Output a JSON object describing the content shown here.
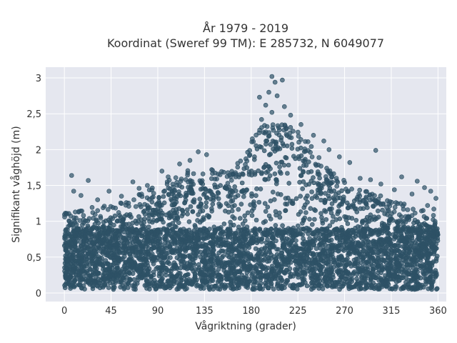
{
  "chart_data": {
    "type": "scatter",
    "title": "År 1979 - 2019",
    "subtitle": "Koordinat (Sweref 99 TM): E 285732, N 6049077",
    "xlabel": "Vågriktning (grader)",
    "ylabel": "Signifikant våghöjd (m)",
    "xlim": [
      -18,
      368
    ],
    "ylim": [
      -0.12,
      3.15
    ],
    "xticks": [
      0,
      45,
      90,
      135,
      180,
      225,
      270,
      315,
      360
    ],
    "xtick_labels": [
      "0",
      "45",
      "90",
      "135",
      "180",
      "225",
      "270",
      "315",
      "360"
    ],
    "yticks": [
      0,
      0.5,
      1,
      1.5,
      2,
      2.5,
      3
    ],
    "ytick_labels": [
      "0",
      "0,5",
      "1",
      "1,5",
      "2",
      "2,5",
      "3"
    ],
    "grid": true,
    "point_color": "#2e5166",
    "plot_background": "#e5e7ef",
    "envelope": {
      "direction": [
        0,
        20,
        40,
        60,
        80,
        100,
        120,
        140,
        160,
        175,
        185,
        195,
        205,
        215,
        225,
        235,
        250,
        270,
        290,
        310,
        330,
        350,
        360
      ],
      "max_height": [
        0.95,
        1.0,
        1.05,
        1.12,
        1.25,
        1.4,
        1.55,
        1.55,
        1.5,
        1.8,
        2.15,
        2.2,
        2.2,
        2.2,
        2.1,
        1.95,
        1.6,
        1.4,
        1.25,
        1.15,
        1.05,
        0.95,
        0.9
      ],
      "min_height": 0.05
    },
    "outliers": [
      {
        "x": 200,
        "y": 3.02
      },
      {
        "x": 210,
        "y": 2.97
      },
      {
        "x": 203,
        "y": 2.94
      },
      {
        "x": 197,
        "y": 2.8
      },
      {
        "x": 205,
        "y": 2.75
      },
      {
        "x": 188,
        "y": 2.73
      },
      {
        "x": 194,
        "y": 2.62
      },
      {
        "x": 212,
        "y": 2.6
      },
      {
        "x": 200,
        "y": 2.52
      },
      {
        "x": 218,
        "y": 2.48
      },
      {
        "x": 190,
        "y": 2.42
      },
      {
        "x": 228,
        "y": 2.35
      },
      {
        "x": 240,
        "y": 2.2
      },
      {
        "x": 250,
        "y": 2.12
      },
      {
        "x": 300,
        "y": 1.99
      },
      {
        "x": 255,
        "y": 2.0
      },
      {
        "x": 265,
        "y": 1.9
      },
      {
        "x": 275,
        "y": 1.82
      },
      {
        "x": 129,
        "y": 1.97
      },
      {
        "x": 137,
        "y": 1.93
      },
      {
        "x": 121,
        "y": 1.85
      },
      {
        "x": 111,
        "y": 1.8
      },
      {
        "x": 94,
        "y": 1.7
      },
      {
        "x": 100,
        "y": 1.62
      },
      {
        "x": 7,
        "y": 1.64
      },
      {
        "x": 23,
        "y": 1.57
      },
      {
        "x": 9,
        "y": 1.42
      },
      {
        "x": 16,
        "y": 1.36
      },
      {
        "x": 43,
        "y": 1.42
      },
      {
        "x": 32,
        "y": 1.3
      },
      {
        "x": 2,
        "y": 1.1
      },
      {
        "x": 66,
        "y": 1.55
      },
      {
        "x": 72,
        "y": 1.46
      },
      {
        "x": 55,
        "y": 1.35
      },
      {
        "x": 80,
        "y": 1.5
      },
      {
        "x": 318,
        "y": 1.44
      },
      {
        "x": 305,
        "y": 1.52
      },
      {
        "x": 295,
        "y": 1.58
      },
      {
        "x": 285,
        "y": 1.6
      },
      {
        "x": 325,
        "y": 1.62
      },
      {
        "x": 340,
        "y": 1.56
      },
      {
        "x": 347,
        "y": 1.47
      },
      {
        "x": 353,
        "y": 1.42
      },
      {
        "x": 358,
        "y": 1.32
      },
      {
        "x": 356,
        "y": 1.17
      },
      {
        "x": 350,
        "y": 1.22
      },
      {
        "x": 335,
        "y": 1.38
      },
      {
        "x": 142,
        "y": 1.72
      },
      {
        "x": 150,
        "y": 1.65
      },
      {
        "x": 165,
        "y": 1.62
      }
    ]
  }
}
